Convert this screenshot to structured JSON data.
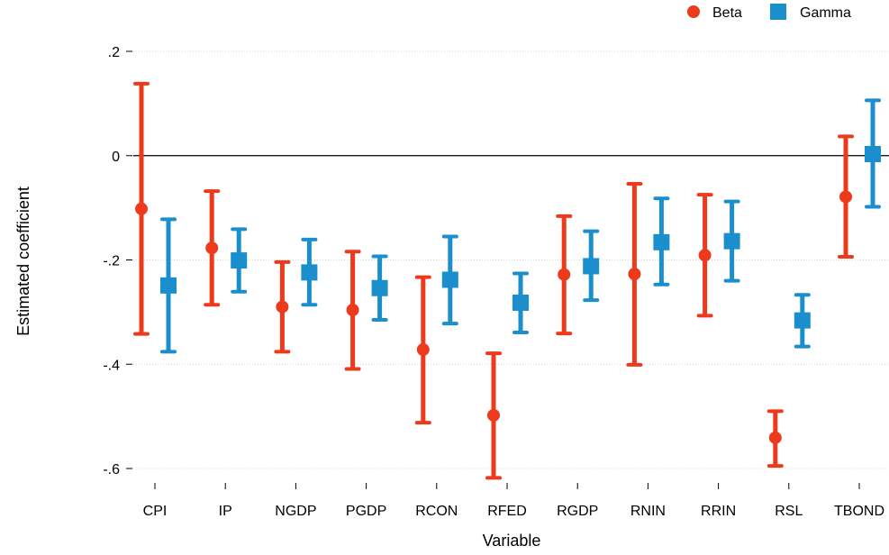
{
  "chart_data": {
    "type": "scatter",
    "subtype": "coefficient-plot-with-error-bars",
    "xlabel": "Variable",
    "ylabel": "Estimated coefficient",
    "categories": [
      "CPI",
      "IP",
      "NGDP",
      "PGDP",
      "RCON",
      "RFED",
      "RGDP",
      "RNIN",
      "RRIN",
      "RSL",
      "TBOND"
    ],
    "ylim": [
      -0.6,
      0.2
    ],
    "yticks": [
      -0.6,
      -0.4,
      -0.2,
      0,
      0.2
    ],
    "ytick_labels": [
      "-.6",
      "-.4",
      "-.2",
      "0",
      ".2"
    ],
    "grid": true,
    "reference_line": 0,
    "legend_position": "top-right",
    "series": [
      {
        "name": "Beta",
        "marker": "circle",
        "color": "#ee3a1c",
        "estimates": [
          -0.102,
          -0.177,
          -0.29,
          -0.296,
          -0.372,
          -0.498,
          -0.228,
          -0.227,
          -0.191,
          null,
          -0.079
        ],
        "lower": [
          -0.342,
          -0.286,
          -0.376,
          -0.409,
          -0.512,
          -0.618,
          -0.341,
          -0.401,
          -0.307,
          null,
          -0.194
        ],
        "upper": [
          0.138,
          -0.068,
          -0.204,
          -0.184,
          -0.233,
          -0.379,
          -0.116,
          -0.054,
          -0.075,
          null,
          0.037
        ]
      },
      {
        "name": "Gamma",
        "marker": "square",
        "color": "#1b8ecd",
        "estimates": [
          -0.249,
          -0.201,
          -0.224,
          -0.254,
          -0.238,
          -0.282,
          -0.212,
          -0.166,
          -0.164,
          -0.316,
          0.003
        ],
        "lower": [
          -0.376,
          -0.261,
          -0.286,
          -0.315,
          -0.322,
          -0.339,
          -0.277,
          -0.247,
          -0.24,
          -0.366,
          -0.098
        ],
        "upper": [
          -0.122,
          -0.141,
          -0.161,
          -0.193,
          -0.155,
          -0.226,
          -0.145,
          -0.082,
          -0.088,
          -0.267,
          0.106
        ]
      },
      {
        "name": "Beta",
        "marker": "circle",
        "color": "#ee3a1c",
        "legend": false,
        "note_category": "RSL",
        "estimates": [
          null,
          null,
          null,
          null,
          null,
          null,
          null,
          null,
          null,
          -0.541,
          null
        ],
        "lower": [
          null,
          null,
          null,
          null,
          null,
          null,
          null,
          null,
          null,
          -0.595,
          null
        ],
        "upper": [
          null,
          null,
          null,
          null,
          null,
          null,
          null,
          null,
          null,
          -0.49,
          null
        ]
      }
    ]
  }
}
